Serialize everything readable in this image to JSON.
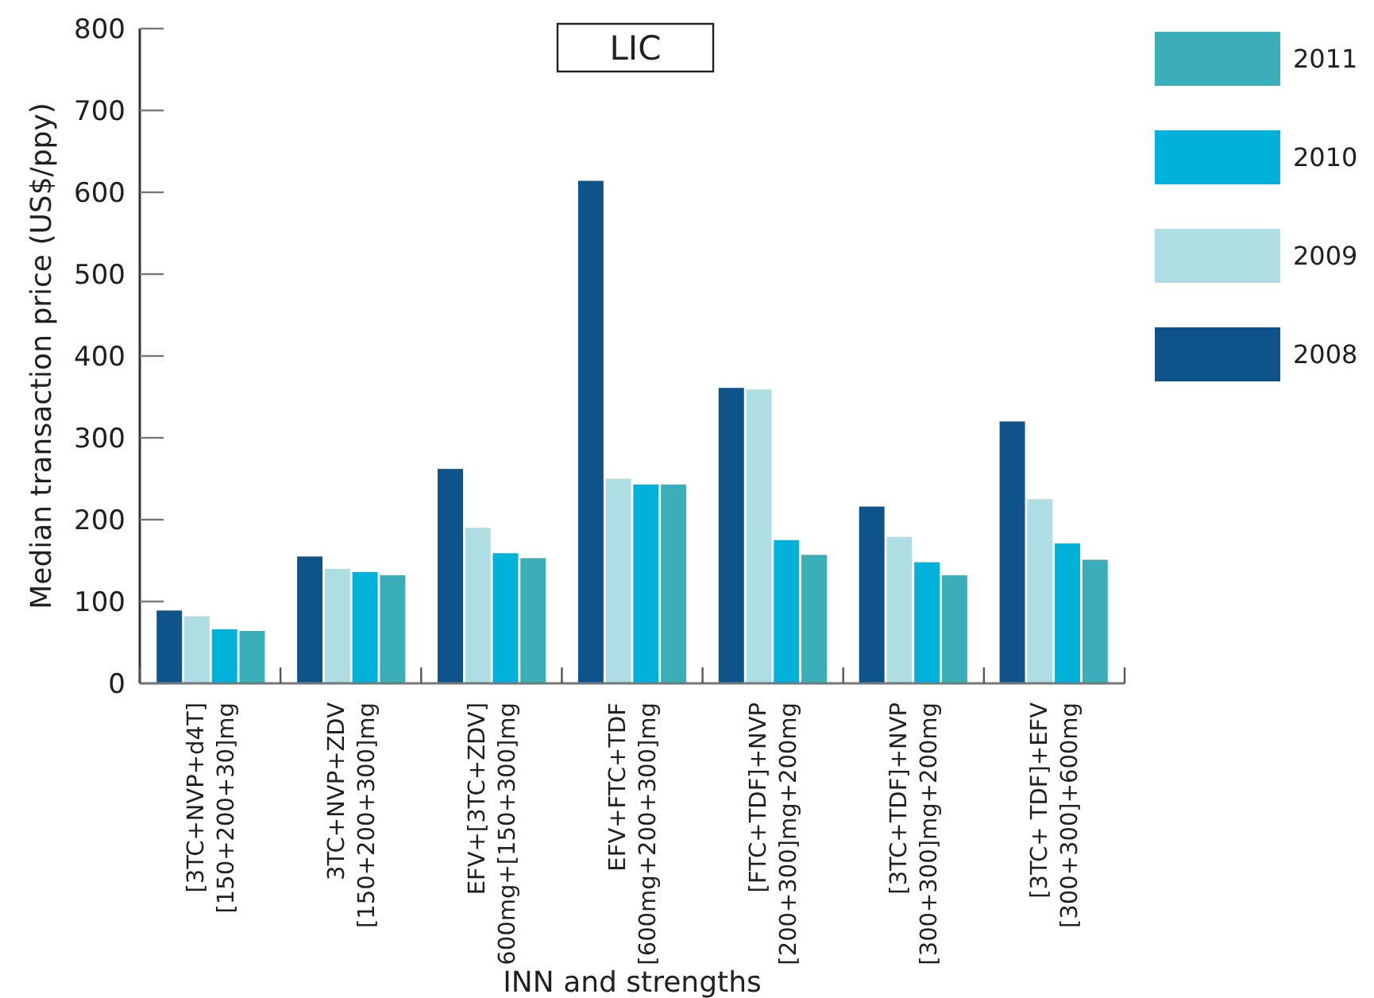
{
  "chart_data": {
    "type": "bar",
    "title": "LIC",
    "xlabel": "INN and strengths",
    "ylabel": "Median transaction price (US$/ppy)",
    "categories": [
      "[3TC+NVP+d4T]\n[150+200+30]mg",
      "3TC+NVP+ZDV\n[150+200+300]mg",
      "EFV+[3TC+ZDV]\n600mg+[150+300]mg",
      "EFV+FTC+TDF\n[600mg+200+300]mg",
      "[FTC+TDF]+NVP\n[200+300]mg+200mg",
      "[3TC+TDF]+NVP\n[300+300]mg+200mg",
      "[3TC+ TDF]+EFV\n[300+300]+600mg"
    ],
    "series": [
      {
        "name": "2008",
        "color": "#0e5389",
        "values": [
          89,
          155,
          262,
          614,
          361,
          216,
          320
        ]
      },
      {
        "name": "2009",
        "color": "#aedde3",
        "values": [
          82,
          140,
          190,
          250,
          359,
          179,
          225
        ]
      },
      {
        "name": "2010",
        "color": "#00b2d9",
        "values": [
          66,
          136,
          159,
          243,
          175,
          148,
          171
        ]
      },
      {
        "name": "2011",
        "color": "#3aafb9",
        "values": [
          64,
          132,
          153,
          243,
          157,
          132,
          151
        ]
      }
    ],
    "ylim": [
      0,
      800
    ],
    "yticks": [
      0,
      100,
      200,
      300,
      400,
      500,
      600,
      700,
      800
    ],
    "legend": "right",
    "grid": false
  }
}
